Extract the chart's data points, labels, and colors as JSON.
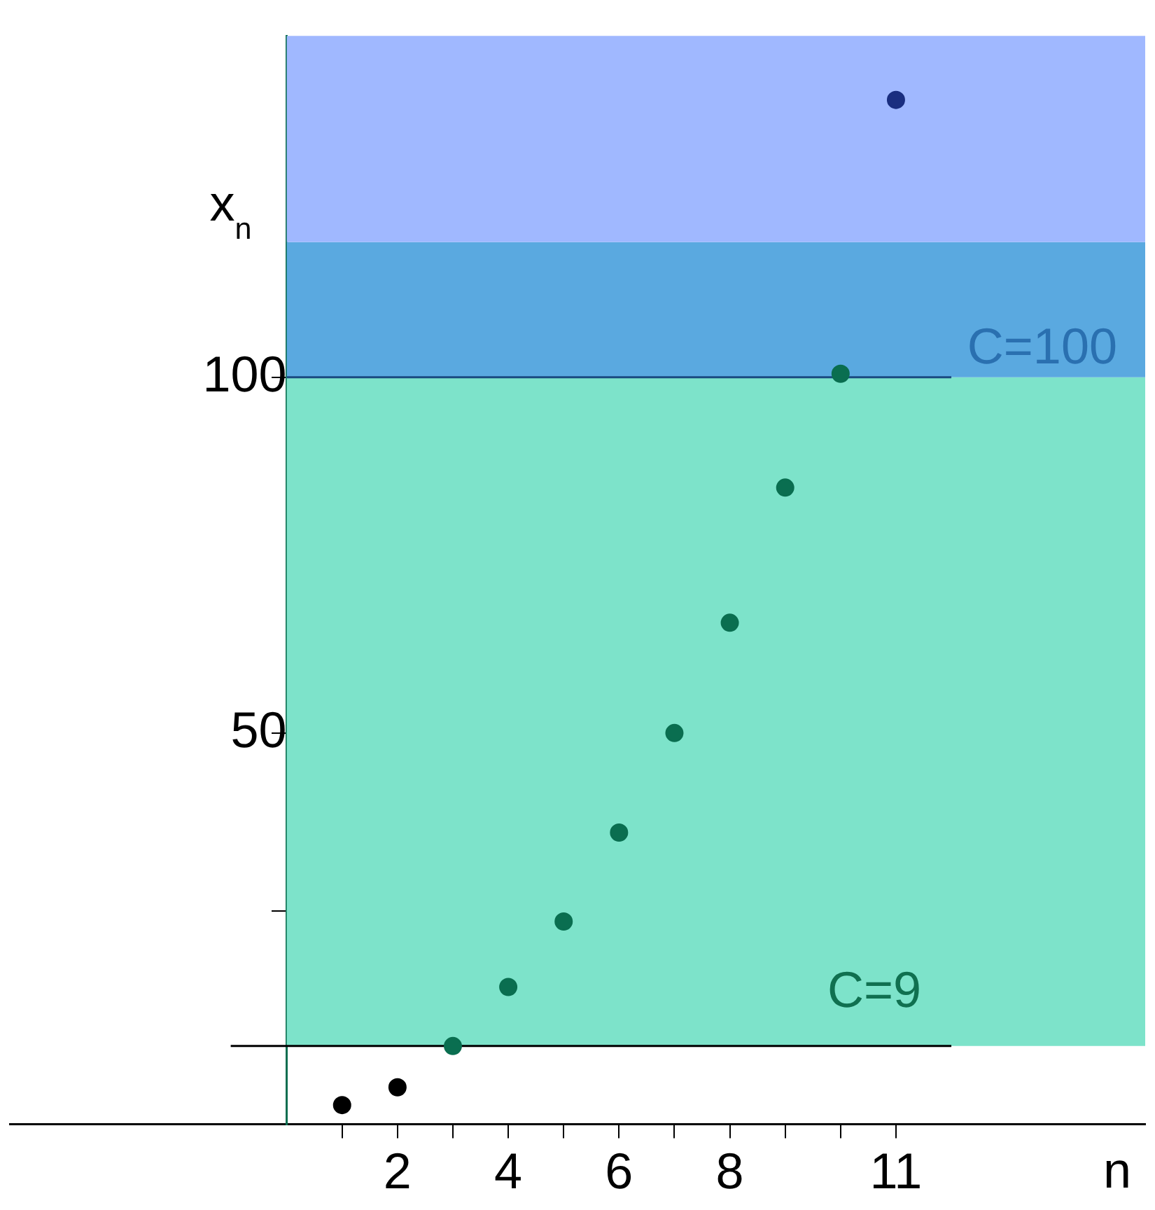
{
  "chart_data": {
    "type": "scatter",
    "xlabel": "n",
    "ylabel": "x$_{n}$",
    "x": [
      1,
      2,
      3,
      4,
      5,
      6,
      7,
      8,
      9,
      10,
      11
    ],
    "values": [
      -2.3,
      0.2,
      6,
      14.3,
      23.5,
      36,
      50,
      65.5,
      84.5,
      100.5,
      139
    ],
    "colors": [
      "#000000",
      "#000000",
      "#0a6e50",
      "#0a6e50",
      "#0a6e50",
      "#0a6e50",
      "#0a6e50",
      "#0a6e50",
      "#0a6e50",
      "#0a6e50",
      "#1a2e80"
    ],
    "xlim": [
      -5,
      15.5
    ],
    "ylim": [
      -5,
      148
    ],
    "xticks": [
      {
        "value": 1,
        "label": null
      },
      2,
      {
        "value": 3,
        "label": null
      },
      4,
      {
        "value": 5,
        "label": null
      },
      6,
      {
        "value": 7,
        "label": null
      },
      8,
      {
        "value": 9,
        "label": null
      },
      {
        "value": 10,
        "label": null
      },
      11
    ],
    "yticks": [
      {
        "value": 25,
        "label": null
      },
      50,
      100
    ],
    "bands": [
      {
        "axis": "y",
        "from": 6,
        "to": 100,
        "label": "C=9",
        "color": "#7de3ca"
      },
      {
        "axis": "y",
        "from": 100,
        "to": 119,
        "label": "C=100",
        "color": "#5aa9e0"
      },
      {
        "axis": "y",
        "from": 119,
        "to": 148,
        "color": "#a0b8ff"
      }
    ],
    "ref_lines": [
      {
        "axis": "y",
        "value": 6,
        "color": "#000000"
      },
      {
        "axis": "y",
        "value": 100,
        "color": "#1a4a80"
      }
    ],
    "grid": false,
    "legend": false,
    "marker": "circle"
  }
}
